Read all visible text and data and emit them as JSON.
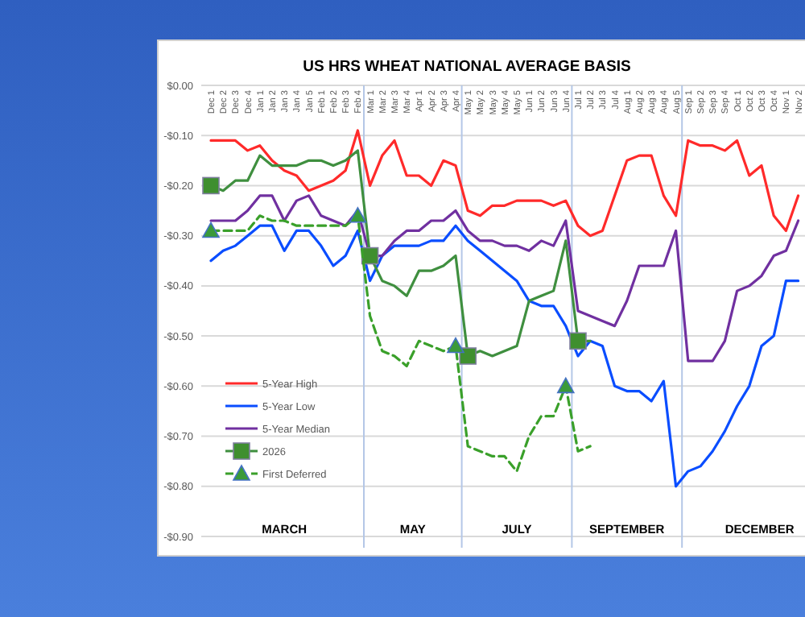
{
  "chart_data": {
    "type": "line",
    "title": "US HRS WHEAT NATIONAL AVERAGE BASIS",
    "categories": [
      "Dec 1",
      "Dec 2",
      "Dec 3",
      "Dec 4",
      "Jan 1",
      "Jan 2",
      "Jan 3",
      "Jan 4",
      "Jan 5",
      "Feb 1",
      "Feb 2",
      "Feb 3",
      "Feb 4",
      "Mar 1",
      "Mar 2",
      "Mar 3",
      "Mar 4",
      "Apr 1",
      "Apr 2",
      "Apr 3",
      "Apr 4",
      "May 1",
      "May 2",
      "May 3",
      "May 4",
      "May 5",
      "Jun 1",
      "Jun 2",
      "Jun 3",
      "Jun 4",
      "Jul 1",
      "Jul 2",
      "Jul 3",
      "Jul 4",
      "Aug 1",
      "Aug 2",
      "Aug 3",
      "Aug 4",
      "Aug 5",
      "Sep 1",
      "Sep 2",
      "Sep 3",
      "Sep 4",
      "Oct 1",
      "Oct 2",
      "Oct 3",
      "Oct 4",
      "Nov 1",
      "Nov 2"
    ],
    "series": [
      {
        "name": "5-Year High",
        "color": "#ff2a2a",
        "values": [
          -0.11,
          -0.11,
          -0.11,
          -0.13,
          -0.12,
          -0.15,
          -0.17,
          -0.18,
          -0.21,
          -0.2,
          -0.19,
          -0.17,
          -0.09,
          -0.2,
          -0.14,
          -0.11,
          -0.18,
          -0.18,
          -0.2,
          -0.15,
          -0.16,
          -0.25,
          -0.26,
          -0.24,
          -0.24,
          -0.23,
          -0.23,
          -0.23,
          -0.24,
          -0.23,
          -0.28,
          -0.3,
          -0.29,
          -0.22,
          -0.15,
          -0.14,
          -0.14,
          -0.22,
          -0.26,
          -0.11,
          -0.12,
          -0.12,
          -0.13,
          -0.11,
          -0.18,
          -0.16,
          -0.26,
          -0.29,
          -0.22
        ]
      },
      {
        "name": "5-Year Low",
        "color": "#0a4dff",
        "values": [
          -0.35,
          -0.33,
          -0.32,
          -0.3,
          -0.28,
          -0.28,
          -0.33,
          -0.29,
          -0.29,
          -0.32,
          -0.36,
          -0.34,
          -0.29,
          -0.39,
          -0.34,
          -0.32,
          -0.32,
          -0.32,
          -0.31,
          -0.31,
          -0.28,
          -0.31,
          -0.33,
          -0.35,
          -0.37,
          -0.39,
          -0.43,
          -0.44,
          -0.44,
          -0.48,
          -0.54,
          -0.51,
          -0.52,
          -0.6,
          -0.61,
          -0.61,
          -0.63,
          -0.59,
          -0.8,
          -0.77,
          -0.76,
          -0.73,
          -0.69,
          -0.64,
          -0.6,
          -0.52,
          -0.5,
          -0.39,
          -0.39
        ]
      },
      {
        "name": "5-Year Median",
        "color": "#7030a0",
        "values": [
          -0.27,
          -0.27,
          -0.27,
          -0.25,
          -0.22,
          -0.22,
          -0.27,
          -0.23,
          -0.22,
          -0.26,
          -0.27,
          -0.28,
          -0.25,
          -0.34,
          -0.34,
          -0.31,
          -0.29,
          -0.29,
          -0.27,
          -0.27,
          -0.25,
          -0.29,
          -0.31,
          -0.31,
          -0.32,
          -0.32,
          -0.33,
          -0.31,
          -0.32,
          -0.27,
          -0.45,
          -0.46,
          -0.47,
          -0.48,
          -0.43,
          -0.36,
          -0.36,
          -0.36,
          -0.29,
          -0.55,
          -0.55,
          -0.55,
          -0.51,
          -0.41,
          -0.4,
          -0.38,
          -0.34,
          -0.33,
          -0.27
        ]
      },
      {
        "name": "2026",
        "color": "#3f8f3f",
        "values": [
          -0.2,
          -0.21,
          -0.19,
          -0.19,
          -0.14,
          -0.16,
          -0.16,
          -0.16,
          -0.15,
          -0.15,
          -0.16,
          -0.15,
          -0.13,
          -0.34,
          -0.39,
          -0.4,
          -0.42,
          -0.37,
          -0.37,
          -0.36,
          -0.34,
          -0.54,
          -0.53,
          -0.54,
          -0.53,
          -0.52,
          -0.43,
          -0.42,
          -0.41,
          -0.31,
          -0.51,
          -0.51,
          null,
          null,
          null,
          null,
          null,
          null,
          null,
          null,
          null,
          null,
          null,
          null,
          null,
          null,
          null,
          null,
          null
        ]
      },
      {
        "type": "scatter",
        "marker": "square",
        "color": "#3f8f2f",
        "x": [
          "Dec 1",
          "Mar 1",
          "May 1",
          "Jul 1"
        ],
        "values": [
          -0.2,
          -0.34,
          -0.54,
          -0.51
        ]
      },
      {
        "name": "First Deferred",
        "color": "#3aa02a",
        "line_style": "dashed",
        "values": [
          -0.29,
          -0.29,
          -0.29,
          -0.29,
          -0.26,
          -0.27,
          -0.27,
          -0.28,
          -0.28,
          -0.28,
          -0.28,
          -0.28,
          -0.26,
          -0.46,
          -0.53,
          -0.54,
          -0.56,
          -0.51,
          -0.52,
          -0.53,
          -0.52,
          -0.72,
          -0.73,
          -0.74,
          -0.74,
          -0.77,
          -0.7,
          -0.66,
          -0.66,
          -0.6,
          -0.73,
          -0.72,
          null,
          null,
          null,
          null,
          null,
          null,
          null,
          null,
          null,
          null,
          null,
          null,
          null,
          null,
          null,
          null,
          null
        ]
      },
      {
        "type": "scatter",
        "marker": "triangle",
        "color": "#3a9a3a",
        "x": [
          "Dec 1",
          "Feb 4",
          "Apr 4",
          "Jun 4"
        ],
        "values": [
          -0.29,
          -0.26,
          -0.52,
          -0.6
        ]
      }
    ],
    "ylim": [
      -0.9,
      0
    ],
    "yticks": [
      {
        "value": 0,
        "label": "$0.00"
      },
      {
        "value": -0.1,
        "label": "-$0.10"
      },
      {
        "value": -0.2,
        "label": "-$0.20"
      },
      {
        "value": -0.3,
        "label": "-$0.30"
      },
      {
        "value": -0.4,
        "label": "-$0.40"
      },
      {
        "value": -0.5,
        "label": "-$0.50"
      },
      {
        "value": -0.6,
        "label": "-$0.60"
      },
      {
        "value": -0.7,
        "label": "-$0.70"
      },
      {
        "value": -0.8,
        "label": "-$0.80"
      },
      {
        "value": -0.9,
        "label": "-$0.90"
      }
    ],
    "grid": "y",
    "annotations": [
      "MARCH",
      "MAY",
      "JULY",
      "SEPTEMBER",
      "DECEMBER"
    ],
    "legend": "left"
  }
}
